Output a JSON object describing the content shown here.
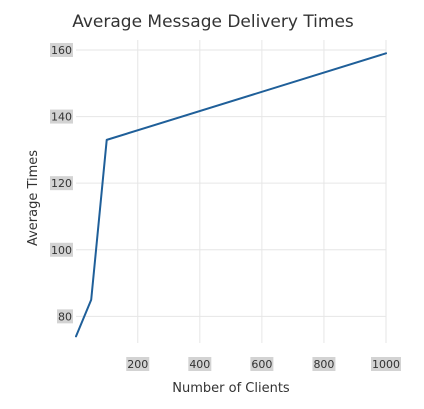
{
  "chart_data": {
    "type": "line",
    "title": "Average Message Delivery Times",
    "xlabel": "Number of Clients",
    "ylabel": "Average Times",
    "xlim": [
      1,
      1000
    ],
    "ylim": [
      72,
      163
    ],
    "x_ticks": [
      200,
      400,
      600,
      800,
      1000
    ],
    "y_ticks": [
      80,
      100,
      120,
      140,
      160
    ],
    "grid": true,
    "legend": "none",
    "series": [
      {
        "color": "#1f5f99",
        "x": [
          1,
          50,
          100,
          1000
        ],
        "y": [
          74,
          85,
          133,
          159
        ]
      }
    ]
  },
  "colors": {
    "tick_label_bg": "#d3d3d3"
  }
}
